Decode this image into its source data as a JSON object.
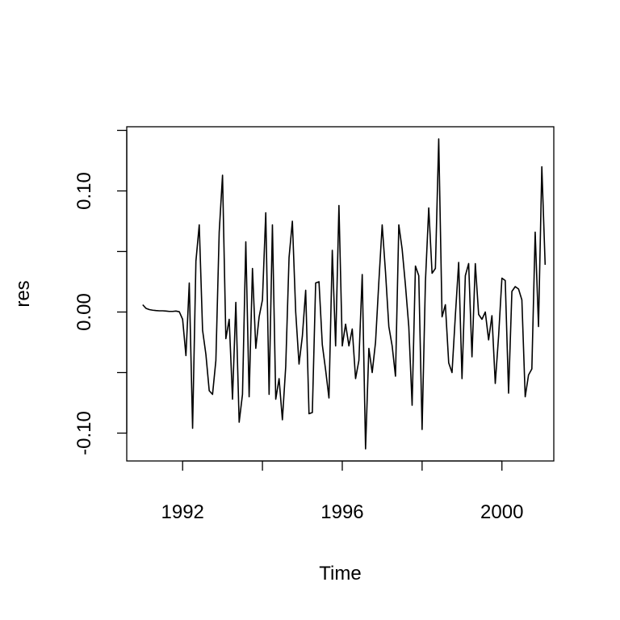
{
  "chart_data": {
    "type": "line",
    "xlabel": "Time",
    "ylabel": "res",
    "xlim": [
      1990.6,
      2001.3
    ],
    "ylim": [
      -0.123,
      0.153
    ],
    "x_ticks": [
      1992,
      1994,
      1996,
      1998,
      2000
    ],
    "x_tick_labels": [
      "1992",
      "",
      "1996",
      "",
      "2000"
    ],
    "y_ticks": [
      -0.1,
      -0.05,
      0.0,
      0.05,
      0.1,
      0.15
    ],
    "y_tick_labels": [
      "-0.10",
      "",
      "0.00",
      "",
      "0.10",
      ""
    ],
    "series": [
      {
        "color": "#000000",
        "start": 1991.0,
        "frequency": 12,
        "values": [
          0.006,
          0.003,
          0.002,
          0.0015,
          0.0012,
          0.001,
          0.001,
          0.0008,
          0.0005,
          0.0005,
          0.0008,
          0.0002,
          -0.006,
          -0.036,
          0.024,
          -0.096,
          0.042,
          0.072,
          -0.015,
          -0.035,
          -0.065,
          -0.068,
          -0.04,
          0.066,
          0.113,
          -0.022,
          -0.006,
          -0.072,
          0.008,
          -0.091,
          -0.068,
          0.058,
          -0.07,
          0.036,
          -0.03,
          -0.004,
          0.01,
          0.082,
          -0.068,
          0.072,
          -0.072,
          -0.055,
          -0.089,
          -0.045,
          0.045,
          0.075,
          0.0,
          -0.043,
          -0.02,
          0.018,
          -0.084,
          -0.083,
          0.024,
          0.025,
          -0.027,
          -0.048,
          -0.071,
          0.051,
          -0.028,
          0.088,
          -0.028,
          -0.01,
          -0.028,
          -0.014,
          -0.055,
          -0.04,
          0.031,
          -0.113,
          -0.03,
          -0.05,
          -0.025,
          0.025,
          0.072,
          0.033,
          -0.012,
          -0.028,
          -0.053,
          0.072,
          0.052,
          0.022,
          -0.012,
          -0.077,
          0.038,
          0.03,
          -0.097,
          0.025,
          0.086,
          0.032,
          0.036,
          0.143,
          -0.004,
          0.006,
          -0.042,
          -0.05,
          -0.003,
          0.041,
          -0.055,
          0.03,
          0.04,
          -0.037,
          0.04,
          -0.002,
          -0.006,
          0.0,
          -0.023,
          -0.003,
          -0.059,
          -0.02,
          0.028,
          0.026,
          -0.067,
          0.017,
          0.021,
          0.019,
          0.01,
          -0.07,
          -0.052,
          -0.047,
          0.066,
          -0.012,
          0.12,
          0.039
        ]
      }
    ]
  }
}
